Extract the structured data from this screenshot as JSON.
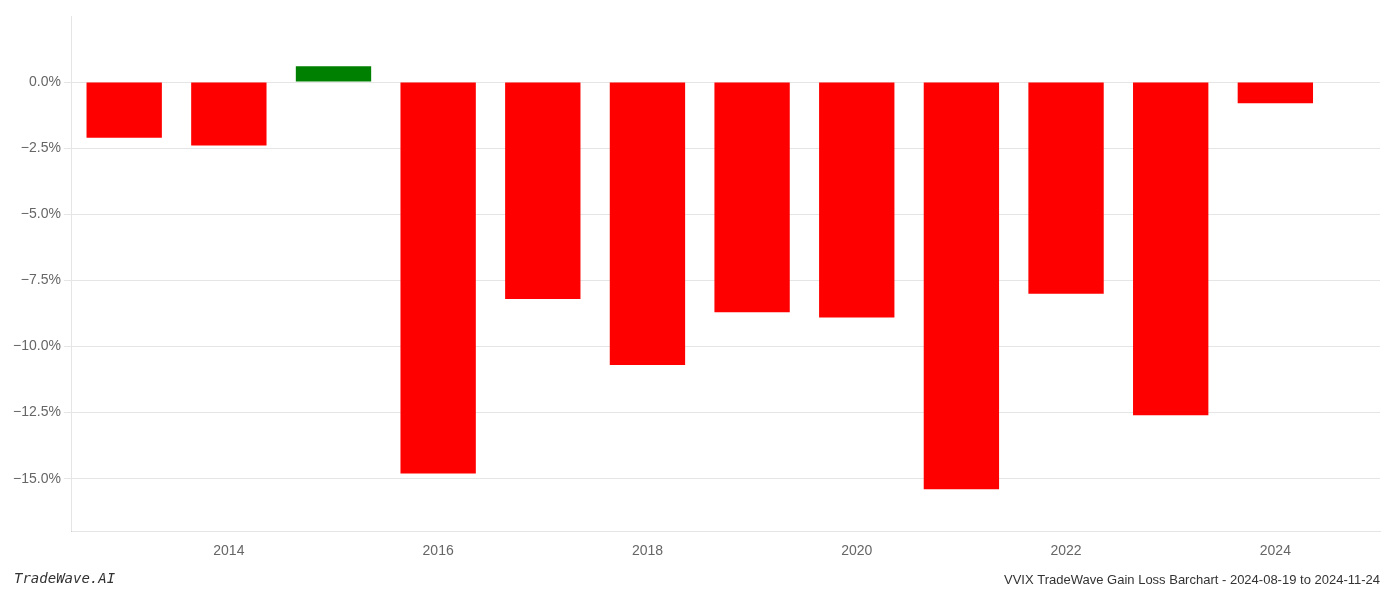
{
  "chart_data": {
    "type": "bar",
    "title": "VVIX TradeWave Gain Loss Barchart - 2024-08-19 to 2024-11-24",
    "annotations": [
      "TradeWave.AI"
    ],
    "x": [
      2013,
      2014,
      2015,
      2016,
      2017,
      2018,
      2019,
      2020,
      2021,
      2022,
      2023,
      2024
    ],
    "values": [
      -0.021,
      -0.024,
      0.006,
      -0.148,
      -0.082,
      -0.107,
      -0.087,
      -0.089,
      -0.154,
      -0.08,
      -0.126,
      -0.008
    ],
    "colors": [
      "#ff0000",
      "#ff0000",
      "#008000",
      "#ff0000",
      "#ff0000",
      "#ff0000",
      "#ff0000",
      "#ff0000",
      "#ff0000",
      "#ff0000",
      "#ff0000",
      "#ff0000"
    ],
    "xlim": [
      2012.5,
      2025.0
    ],
    "xticks": [
      2014,
      2016,
      2018,
      2020,
      2022,
      2024
    ],
    "ylim": [
      -0.17,
      0.025
    ],
    "yticks": [
      {
        "value": 0.0,
        "label": "0.0%"
      },
      {
        "value": -0.025,
        "label": "−2.5%"
      },
      {
        "value": -0.05,
        "label": "−5.0%"
      },
      {
        "value": -0.075,
        "label": "−7.5%"
      },
      {
        "value": -0.1,
        "label": "−10.0%"
      },
      {
        "value": -0.125,
        "label": "−12.5%"
      },
      {
        "value": -0.15,
        "label": "−15.0%"
      }
    ],
    "grid": true
  }
}
